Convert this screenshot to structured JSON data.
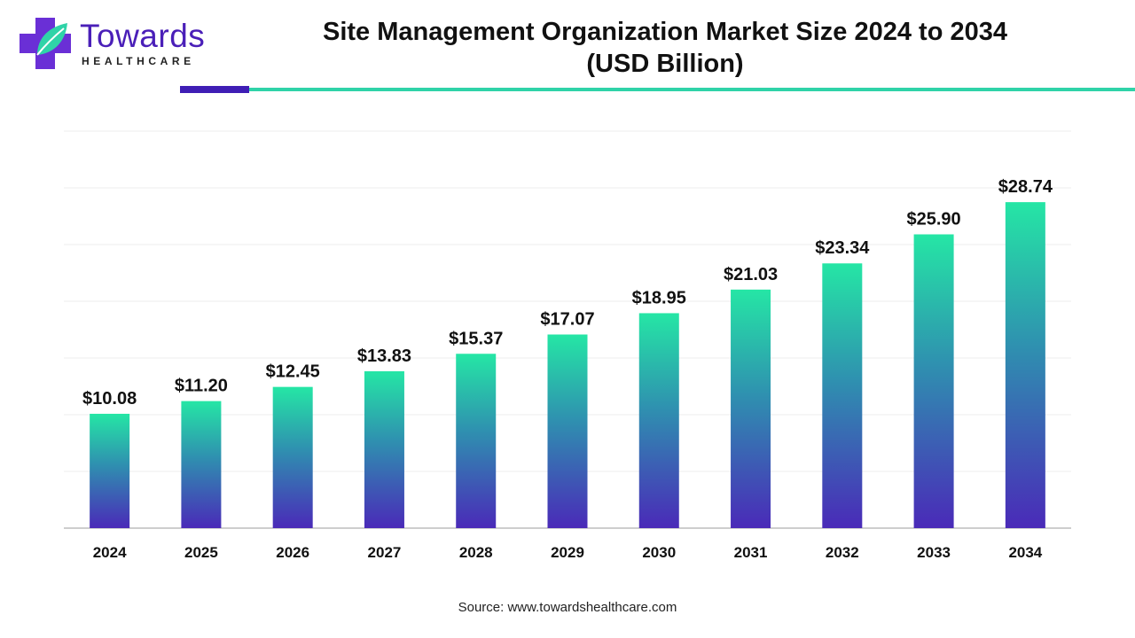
{
  "logo": {
    "word": "Towards",
    "sub": "HEALTHCARE"
  },
  "title_line1": "Site Management Organization Market Size 2024 to 2034",
  "title_line2": "(USD Billion)",
  "source": "Source: www.towardshealthcare.com",
  "colors": {
    "bar_top": "#25e6a5",
    "bar_mid": "#2f8fb0",
    "bar_bottom": "#4a2ab8",
    "accent_purple": "#3f1eb5",
    "accent_teal": "#2fd3a8"
  },
  "chart_data": {
    "type": "bar",
    "categories": [
      "2024",
      "2025",
      "2026",
      "2027",
      "2028",
      "2029",
      "2030",
      "2031",
      "2032",
      "2033",
      "2034"
    ],
    "values": [
      10.08,
      11.2,
      12.45,
      13.83,
      15.37,
      17.07,
      18.95,
      21.03,
      23.34,
      25.9,
      28.74
    ],
    "labels": [
      "$10.08",
      "$11.20",
      "$12.45",
      "$13.83",
      "$15.37",
      "$17.07",
      "$18.95",
      "$21.03",
      "$23.34",
      "$25.90",
      "$28.74"
    ],
    "title": "Site Management Organization Market Size 2024 to 2034 (USD Billion)",
    "xlabel": "",
    "ylabel": "",
    "ylim": [
      0,
      35
    ],
    "grid": true,
    "legend": "none"
  }
}
